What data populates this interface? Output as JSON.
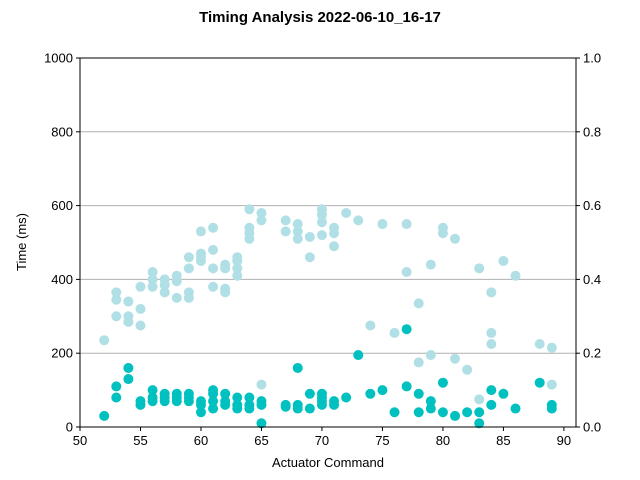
{
  "chart_data": {
    "type": "scatter",
    "title": "Timing Analysis 2022-06-10_16-17",
    "xlabel": "Actuator Command",
    "ylabel": "Time (ms)",
    "xlim": [
      50,
      91
    ],
    "ylim": [
      0,
      1000
    ],
    "y2lim": [
      0,
      1.0
    ],
    "x_ticks": [
      50,
      55,
      60,
      65,
      70,
      75,
      80,
      85,
      90
    ],
    "x_tick_labels": [
      "50",
      "55",
      "60",
      "65",
      "70",
      "75",
      "80",
      "85",
      "90"
    ],
    "y_ticks": [
      0,
      200,
      400,
      600,
      800,
      1000
    ],
    "y_tick_labels": [
      "0",
      "200",
      "400",
      "600",
      "800",
      "1000"
    ],
    "y2_ticks": [
      0,
      0.2,
      0.4,
      0.6,
      0.8,
      1.0
    ],
    "y2_tick_labels": [
      "0.0",
      "0.2",
      "0.4",
      "0.6",
      "0.8",
      "1.0"
    ],
    "grid": "horizontal",
    "series": [
      {
        "color": "#b0e0e6",
        "points": [
          [
            52,
            235
          ],
          [
            53,
            365
          ],
          [
            53,
            345
          ],
          [
            53,
            300
          ],
          [
            54,
            340
          ],
          [
            54,
            300
          ],
          [
            54,
            285
          ],
          [
            55,
            380
          ],
          [
            55,
            320
          ],
          [
            55,
            275
          ],
          [
            56,
            420
          ],
          [
            56,
            400
          ],
          [
            56,
            380
          ],
          [
            57,
            400
          ],
          [
            57,
            385
          ],
          [
            57,
            365
          ],
          [
            58,
            410
          ],
          [
            58,
            395
          ],
          [
            58,
            350
          ],
          [
            59,
            460
          ],
          [
            59,
            430
          ],
          [
            59,
            365
          ],
          [
            59,
            350
          ],
          [
            60,
            530
          ],
          [
            60,
            470
          ],
          [
            60,
            460
          ],
          [
            60,
            450
          ],
          [
            61,
            540
          ],
          [
            61,
            480
          ],
          [
            61,
            430
          ],
          [
            61,
            380
          ],
          [
            62,
            440
          ],
          [
            62,
            430
          ],
          [
            62,
            375
          ],
          [
            62,
            365
          ],
          [
            63,
            460
          ],
          [
            63,
            450
          ],
          [
            63,
            430
          ],
          [
            63,
            410
          ],
          [
            64,
            590
          ],
          [
            64,
            540
          ],
          [
            64,
            525
          ],
          [
            64,
            510
          ],
          [
            65,
            580
          ],
          [
            65,
            560
          ],
          [
            65,
            115
          ],
          [
            67,
            560
          ],
          [
            67,
            530
          ],
          [
            68,
            550
          ],
          [
            68,
            530
          ],
          [
            68,
            510
          ],
          [
            69,
            515
          ],
          [
            69,
            460
          ],
          [
            70,
            590
          ],
          [
            70,
            575
          ],
          [
            70,
            555
          ],
          [
            70,
            520
          ],
          [
            71,
            540
          ],
          [
            71,
            525
          ],
          [
            71,
            490
          ],
          [
            72,
            580
          ],
          [
            73,
            560
          ],
          [
            74,
            275
          ],
          [
            75,
            550
          ],
          [
            76,
            255
          ],
          [
            77,
            550
          ],
          [
            77,
            420
          ],
          [
            78,
            335
          ],
          [
            78,
            175
          ],
          [
            79,
            440
          ],
          [
            79,
            195
          ],
          [
            80,
            540
          ],
          [
            80,
            525
          ],
          [
            81,
            510
          ],
          [
            81,
            185
          ],
          [
            82,
            155
          ],
          [
            83,
            430
          ],
          [
            83,
            75
          ],
          [
            84,
            365
          ],
          [
            84,
            255
          ],
          [
            84,
            225
          ],
          [
            85,
            450
          ],
          [
            86,
            410
          ],
          [
            88,
            225
          ],
          [
            89,
            215
          ],
          [
            89,
            115
          ]
        ]
      },
      {
        "color": "#00c0c0",
        "points": [
          [
            52,
            30
          ],
          [
            53,
            110
          ],
          [
            53,
            80
          ],
          [
            54,
            160
          ],
          [
            54,
            130
          ],
          [
            55,
            70
          ],
          [
            55,
            60
          ],
          [
            56,
            100
          ],
          [
            56,
            80
          ],
          [
            56,
            70
          ],
          [
            57,
            90
          ],
          [
            57,
            80
          ],
          [
            57,
            70
          ],
          [
            58,
            90
          ],
          [
            58,
            80
          ],
          [
            58,
            70
          ],
          [
            59,
            90
          ],
          [
            59,
            80
          ],
          [
            59,
            70
          ],
          [
            60,
            70
          ],
          [
            60,
            60
          ],
          [
            60,
            40
          ],
          [
            61,
            100
          ],
          [
            61,
            90
          ],
          [
            61,
            70
          ],
          [
            61,
            50
          ],
          [
            62,
            90
          ],
          [
            62,
            70
          ],
          [
            62,
            60
          ],
          [
            63,
            80
          ],
          [
            63,
            60
          ],
          [
            63,
            50
          ],
          [
            64,
            80
          ],
          [
            64,
            60
          ],
          [
            64,
            50
          ],
          [
            65,
            70
          ],
          [
            65,
            60
          ],
          [
            65,
            10
          ],
          [
            67,
            60
          ],
          [
            67,
            55
          ],
          [
            68,
            160
          ],
          [
            68,
            60
          ],
          [
            68,
            50
          ],
          [
            69,
            90
          ],
          [
            69,
            50
          ],
          [
            70,
            90
          ],
          [
            70,
            80
          ],
          [
            70,
            70
          ],
          [
            70,
            60
          ],
          [
            71,
            70
          ],
          [
            71,
            60
          ],
          [
            72,
            80
          ],
          [
            73,
            195
          ],
          [
            74,
            90
          ],
          [
            75,
            100
          ],
          [
            76,
            40
          ],
          [
            77,
            265
          ],
          [
            77,
            110
          ],
          [
            78,
            90
          ],
          [
            78,
            40
          ],
          [
            79,
            70
          ],
          [
            79,
            50
          ],
          [
            80,
            120
          ],
          [
            80,
            40
          ],
          [
            81,
            30
          ],
          [
            82,
            40
          ],
          [
            83,
            40
          ],
          [
            83,
            10
          ],
          [
            84,
            100
          ],
          [
            84,
            60
          ],
          [
            85,
            90
          ],
          [
            86,
            50
          ],
          [
            88,
            120
          ],
          [
            89,
            60
          ],
          [
            89,
            50
          ]
        ]
      }
    ]
  }
}
